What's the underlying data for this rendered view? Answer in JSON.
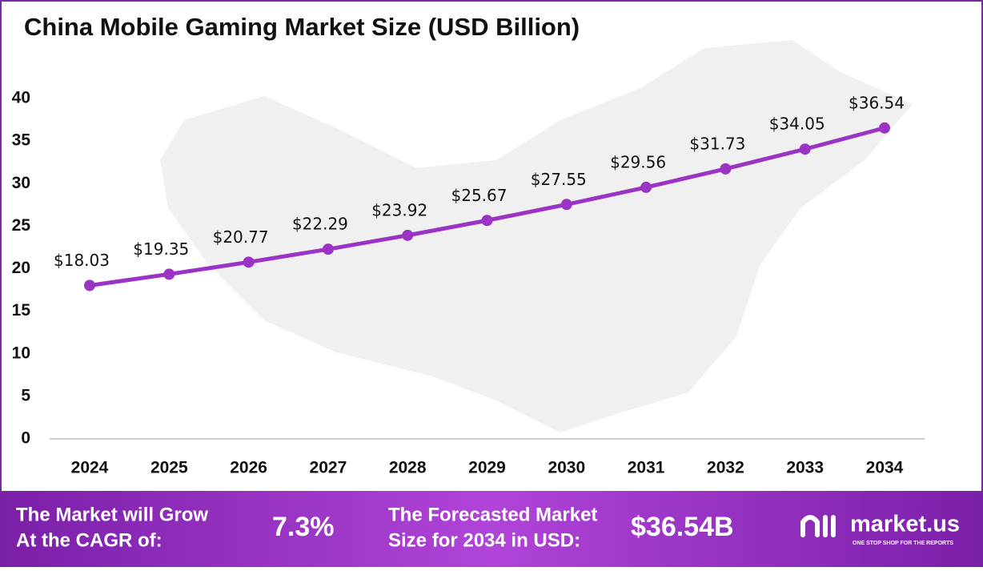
{
  "chart_data": {
    "type": "line",
    "title": "China Mobile Gaming Market Size (USD Billion)",
    "categories": [
      "2024",
      "2025",
      "2026",
      "2027",
      "2028",
      "2029",
      "2030",
      "2031",
      "2032",
      "2033",
      "2034"
    ],
    "series": [
      {
        "name": "Market Size",
        "color": "#9b33c4",
        "values": [
          18.03,
          19.35,
          20.77,
          22.29,
          23.92,
          25.67,
          27.55,
          29.56,
          31.73,
          34.05,
          36.54
        ],
        "value_labels": [
          "$18.03",
          "$19.35",
          "$20.77",
          "$22.29",
          "$23.92",
          "$25.67",
          "$27.55",
          "$29.56",
          "$31.73",
          "$34.05",
          "$36.54"
        ]
      }
    ],
    "ylim": [
      0,
      40
    ],
    "yticks": [
      0,
      5,
      10,
      15,
      20,
      25,
      30,
      35,
      40
    ],
    "grid": false
  },
  "footer": {
    "cagr_label": [
      "The Market will Grow",
      "At the CAGR of:"
    ],
    "cagr_value": "7.3%",
    "forecast_label": [
      "The Forecasted Market",
      "Size for 2034 in USD:"
    ],
    "forecast_value": "$36.54B",
    "brand": "market.us",
    "tagline": "ONE STOP SHOP FOR THE REPORTS"
  }
}
